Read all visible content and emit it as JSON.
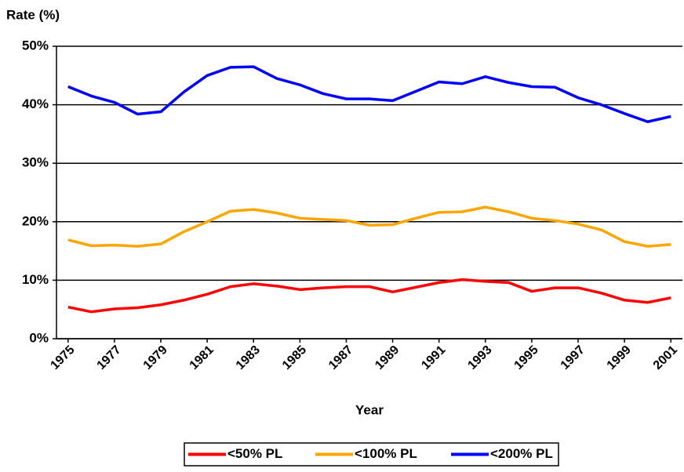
{
  "chart_data": {
    "type": "line",
    "y_label": "Rate (%)",
    "x_label": "Year",
    "x": [
      1975,
      1976,
      1977,
      1978,
      1979,
      1980,
      1981,
      1982,
      1983,
      1984,
      1985,
      1986,
      1987,
      1988,
      1989,
      1990,
      1991,
      1992,
      1993,
      1994,
      1995,
      1996,
      1997,
      1998,
      1999,
      2000,
      2001
    ],
    "xlim": [
      1974.5,
      2001.5
    ],
    "xticks": [
      1975,
      1977,
      1979,
      1981,
      1983,
      1985,
      1987,
      1989,
      1991,
      1993,
      1995,
      1997,
      1999,
      2001
    ],
    "ylim": [
      0,
      50
    ],
    "yticks": [
      {
        "value": 0,
        "label": "0%"
      },
      {
        "value": 10,
        "label": "10%"
      },
      {
        "value": 20,
        "label": "20%"
      },
      {
        "value": 30,
        "label": "30%"
      },
      {
        "value": 40,
        "label": "40%"
      },
      {
        "value": 50,
        "label": "50%"
      }
    ],
    "grid": true,
    "legend": "bottom",
    "series": [
      {
        "name": "<50% PL",
        "color": "#ff0000",
        "values": [
          5.4,
          4.6,
          5.1,
          5.3,
          5.8,
          6.6,
          7.6,
          8.9,
          9.4,
          9.0,
          8.4,
          8.7,
          8.9,
          8.9,
          8.0,
          8.8,
          9.6,
          10.1,
          9.8,
          9.6,
          8.1,
          8.7,
          8.7,
          7.8,
          6.6,
          6.2,
          7.0
        ]
      },
      {
        "name": "<100% PL",
        "color": "#ffa500",
        "values": [
          16.9,
          15.9,
          16.0,
          15.8,
          16.2,
          18.3,
          20.0,
          21.8,
          22.1,
          21.5,
          20.6,
          20.4,
          20.2,
          19.4,
          19.5,
          20.6,
          21.6,
          21.7,
          22.5,
          21.7,
          20.6,
          20.2,
          19.6,
          18.6,
          16.6,
          15.8,
          16.1
        ]
      },
      {
        "name": "<200% PL",
        "color": "#0000ff",
        "values": [
          43.1,
          41.5,
          40.4,
          38.4,
          38.8,
          42.2,
          45.0,
          46.4,
          46.5,
          44.5,
          43.4,
          41.9,
          41.0,
          41.0,
          40.7,
          42.3,
          43.9,
          43.6,
          44.8,
          43.8,
          43.1,
          43.0,
          41.2,
          40.0,
          38.5,
          37.1,
          38.0
        ]
      }
    ]
  }
}
